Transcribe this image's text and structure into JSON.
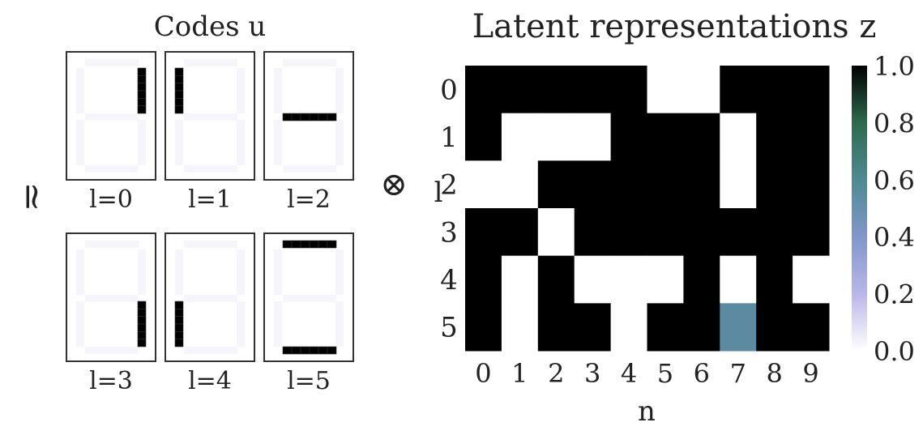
{
  "chart_data": [
    {
      "type": "grid-images",
      "title": "Codes u",
      "panels": [
        {
          "label": "l=0",
          "active_segments": [
            "upper-right"
          ]
        },
        {
          "label": "l=1",
          "active_segments": [
            "upper-left"
          ]
        },
        {
          "label": "l=2",
          "active_segments": [
            "middle"
          ]
        },
        {
          "label": "l=3",
          "active_segments": [
            "lower-right"
          ]
        },
        {
          "label": "l=4",
          "active_segments": [
            "lower-left"
          ]
        },
        {
          "label": "l=5",
          "active_segments": [
            "top",
            "bottom"
          ]
        }
      ],
      "segment_color": "#000000"
    },
    {
      "type": "heatmap",
      "title": "Latent representations z",
      "xlabel": "n",
      "ylabel": "l",
      "x": [
        "0",
        "1",
        "2",
        "3",
        "4",
        "5",
        "6",
        "7",
        "8",
        "9"
      ],
      "y": [
        "0",
        "1",
        "2",
        "3",
        "4",
        "5"
      ],
      "values": [
        [
          1,
          1,
          1,
          1,
          1,
          0,
          0,
          1,
          1,
          1
        ],
        [
          1,
          0,
          0,
          0,
          1,
          1,
          1,
          0,
          1,
          1
        ],
        [
          0,
          0,
          1,
          1,
          1,
          1,
          1,
          0,
          1,
          1
        ],
        [
          1,
          1,
          0,
          1,
          1,
          1,
          1,
          1,
          1,
          1
        ],
        [
          1,
          0,
          1,
          0,
          0,
          0,
          1,
          0,
          1,
          0
        ],
        [
          1,
          0,
          1,
          1,
          0,
          1,
          1,
          0.4,
          1,
          1
        ]
      ],
      "colorbar": {
        "min": 0.0,
        "max": 1.0,
        "ticks": [
          "0.0",
          "0.2",
          "0.4",
          "0.6",
          "0.8",
          "1.0"
        ],
        "colormap": "cubehelix_r"
      }
    }
  ],
  "symbols": {
    "approx": "≃",
    "tensor": "⊗"
  }
}
